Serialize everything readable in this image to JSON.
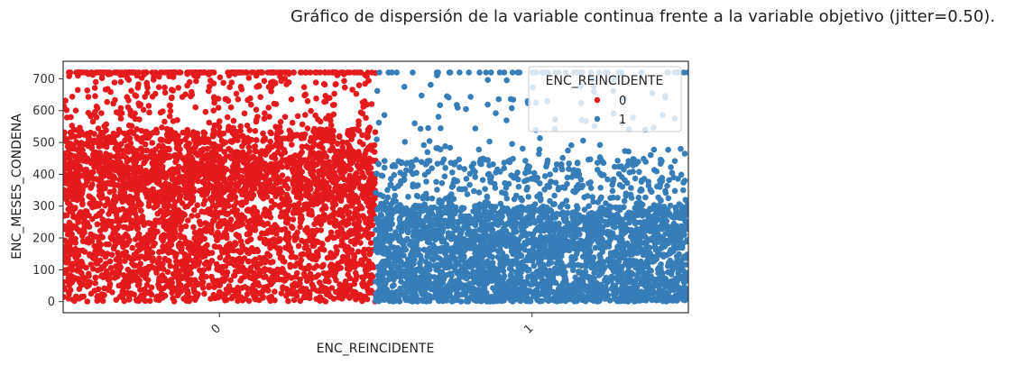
{
  "chart_data": {
    "type": "scatter",
    "title": "Gráfico de dispersión de la variable continua frente a la variable objetivo (jitter=0.50).",
    "xlabel": "ENC_REINCIDENTE",
    "ylabel": "ENC_MESES_CONDENA",
    "categories": [
      "0",
      "1"
    ],
    "ylim": [
      -35,
      755
    ],
    "yticks": [
      0,
      100,
      200,
      300,
      400,
      500,
      600,
      700
    ],
    "jitter": 0.5,
    "grid": false,
    "legend": {
      "title": "ENC_REINCIDENTE",
      "placement": "top-right",
      "entries": [
        "0",
        "1"
      ]
    },
    "series": [
      {
        "name": "0",
        "category": "0",
        "color": "#e41a1c",
        "dense_max": 540,
        "sparse_max": 720,
        "cap_value": 720
      },
      {
        "name": "1",
        "category": "1",
        "color": "#377eb8",
        "dense_max": 300,
        "sparse_max": 720,
        "cap_value": 720
      }
    ]
  }
}
